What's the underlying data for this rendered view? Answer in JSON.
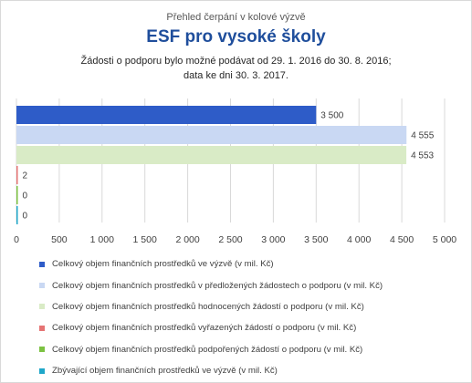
{
  "header": {
    "supertitle": "Přehled čerpání v kolové výzvě",
    "title": "ESF pro vysoké školy",
    "subtitle_line1": "Žádosti o podporu bylo možné  podávat od 29. 1. 2016 do 30. 8. 2016;",
    "subtitle_line2": "data ke dni 30. 3. 2017."
  },
  "chart_data": {
    "type": "bar",
    "orientation": "horizontal",
    "xlim": [
      0,
      5000
    ],
    "xticks": [
      "0",
      "500",
      "1 000",
      "1 500",
      "2 000",
      "2 500",
      "3 000",
      "3 500",
      "4 000",
      "4 500",
      "5 000"
    ],
    "grid": true,
    "legend_position": "bottom",
    "series": [
      {
        "name": "Celkový objem finančních prostředků ve výzvě (v mil. Kč)",
        "value": 3500,
        "label": "3 500",
        "color": "#2e5cc8"
      },
      {
        "name": "Celkový objem finančních prostředků v předložených žádostech o podporu (v mil. Kč)",
        "value": 4555,
        "label": "4 555",
        "color": "#c9d8f3"
      },
      {
        "name": "Celkový objem finančních prostředků hodnocených žádostí o podporu (v mil. Kč)",
        "value": 4553,
        "label": "4 553",
        "color": "#d9ebc6"
      },
      {
        "name": "Celkový objem finančních prostředků vyřazených žádostí o podporu (v mil. Kč)",
        "value": 2,
        "label": "2",
        "color": "#e57373"
      },
      {
        "name": "Celkový objem finančních prostředků podpořených žádostí o podporu (v mil. Kč)",
        "value": 0,
        "label": "0",
        "color": "#7cc242"
      },
      {
        "name": "Zbývající objem finančních prostředků ve výzvě (v mil. Kč)",
        "value": 0,
        "label": "0",
        "color": "#1fa7c9"
      }
    ]
  }
}
